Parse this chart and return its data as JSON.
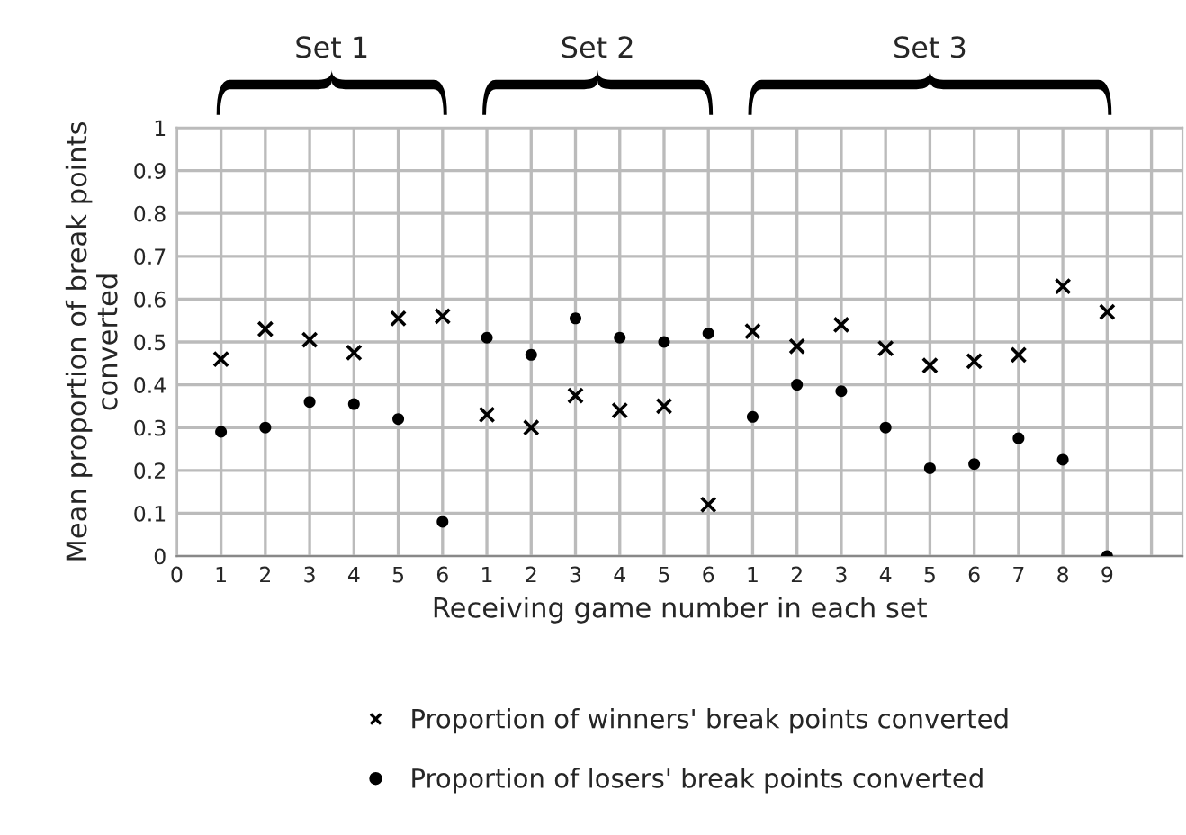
{
  "chart_data": {
    "type": "scatter",
    "xlabel": "Receiving game number in each set",
    "ylabel": "Mean proportion of break points converted",
    "categories": [
      "0",
      "1",
      "2",
      "3",
      "4",
      "5",
      "6",
      "1",
      "2",
      "3",
      "4",
      "5",
      "6",
      "1",
      "2",
      "3",
      "4",
      "5",
      "6",
      "7",
      "8",
      "9",
      null
    ],
    "series": [
      {
        "name": "Proportion of winners' break points converted",
        "color": "#000000",
        "marker": "cross",
        "values": [
          null,
          0.46,
          0.53,
          0.505,
          0.475,
          0.555,
          0.56,
          0.33,
          0.3,
          0.375,
          0.34,
          0.35,
          0.12,
          0.525,
          0.49,
          0.54,
          0.485,
          0.445,
          0.455,
          0.47,
          0.63,
          0.57,
          null
        ]
      },
      {
        "name": "Proportion of losers' break points converted",
        "color": "#000000",
        "marker": "circle",
        "values": [
          null,
          0.29,
          0.3,
          0.36,
          0.355,
          0.32,
          0.08,
          0.51,
          0.47,
          0.555,
          0.51,
          0.5,
          0.52,
          0.325,
          0.4,
          0.385,
          0.3,
          0.205,
          0.215,
          0.275,
          0.225,
          0.0,
          null
        ]
      }
    ],
    "ylim": [
      0,
      1
    ],
    "yticks": [
      0,
      0.1,
      0.2,
      0.3,
      0.4,
      0.5,
      0.6,
      0.7,
      0.8,
      0.9,
      1
    ],
    "grid": true,
    "legend": "bottom",
    "annotations": [
      "Set 1",
      "Set 2",
      "Set 3"
    ]
  }
}
